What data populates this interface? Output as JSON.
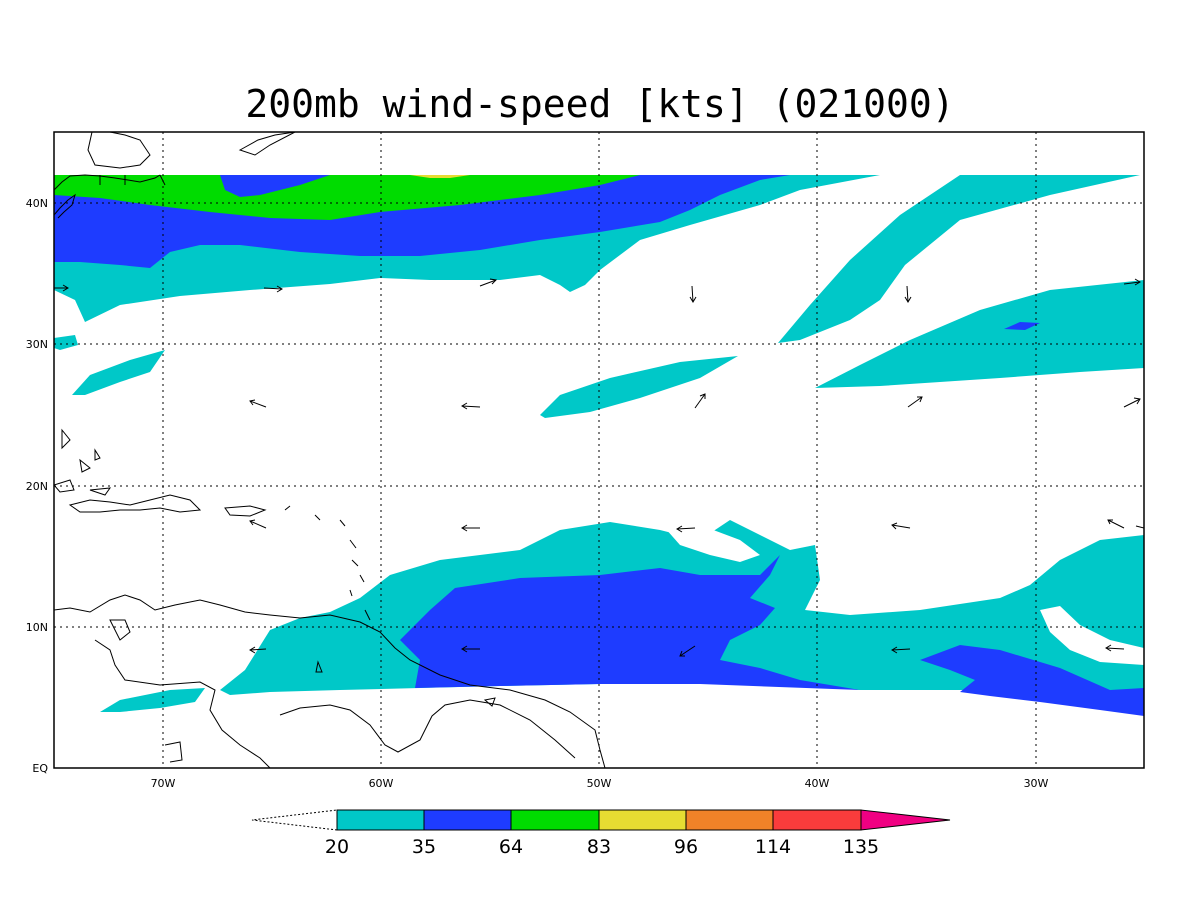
{
  "title": "200mb wind-speed [kts] (021000)",
  "axes": {
    "lon_labels": [
      "70W",
      "60W",
      "50W",
      "40W",
      "30W"
    ],
    "lat_labels": [
      "EQ",
      "10N",
      "20N",
      "30N",
      "40N"
    ]
  },
  "colorbar": {
    "labels": [
      "20",
      "35",
      "64",
      "83",
      "96",
      "114",
      "135"
    ],
    "colors": [
      "#00c8c8",
      "#1e3cff",
      "#00dc00",
      "#e6dc32",
      "#f08228",
      "#fa3c3c",
      "#f00082"
    ]
  },
  "wind_speed_colors": {
    "20-35": "#00c8c8",
    "35-64": "#1e3cff",
    "64-83": "#00dc00",
    "83-96": "#e6dc32"
  }
}
